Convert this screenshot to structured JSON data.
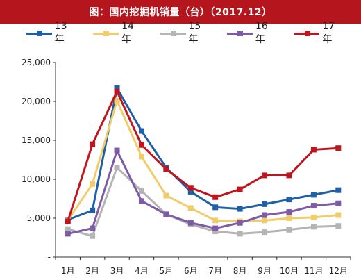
{
  "chart_data": {
    "type": "line",
    "title": "图：国内挖掘机销量（台）（2017.12）",
    "x": [
      "1月",
      "2月",
      "3月",
      "4月",
      "5月",
      "6月",
      "7月",
      "8月",
      "9月",
      "10月",
      "11月",
      "12月"
    ],
    "ylim": [
      0,
      25000
    ],
    "yticks": [
      0,
      5000,
      10000,
      15000,
      20000,
      25000
    ],
    "ytick_labels": [
      "-",
      "5,000",
      "10,000",
      "15,000",
      "20,000",
      "25,000"
    ],
    "grid": false,
    "legend_position": "top",
    "series": [
      {
        "name": "13年",
        "color": "#1f5fa6",
        "values": [
          4800,
          6000,
          21700,
          16200,
          11500,
          8400,
          6400,
          6200,
          6800,
          7400,
          8000,
          8600
        ]
      },
      {
        "name": "14年",
        "color": "#f0cd6a",
        "values": [
          4700,
          9400,
          20100,
          12900,
          7900,
          6300,
          4700,
          4600,
          4700,
          5000,
          5100,
          5400
        ]
      },
      {
        "name": "15年",
        "color": "#b4b4b4",
        "values": [
          3600,
          2700,
          11500,
          8500,
          5500,
          4200,
          3300,
          3000,
          3200,
          3500,
          3900,
          4000
        ]
      },
      {
        "name": "16年",
        "color": "#7d5ba6",
        "values": [
          3000,
          3700,
          13700,
          7200,
          5500,
          4400,
          3700,
          4400,
          5400,
          5800,
          6600,
          6900
        ]
      },
      {
        "name": "17年",
        "color": "#c0151d",
        "values": [
          4600,
          14500,
          21300,
          14400,
          11300,
          8900,
          7700,
          8700,
          10500,
          10500,
          13800,
          14000
        ]
      }
    ]
  }
}
